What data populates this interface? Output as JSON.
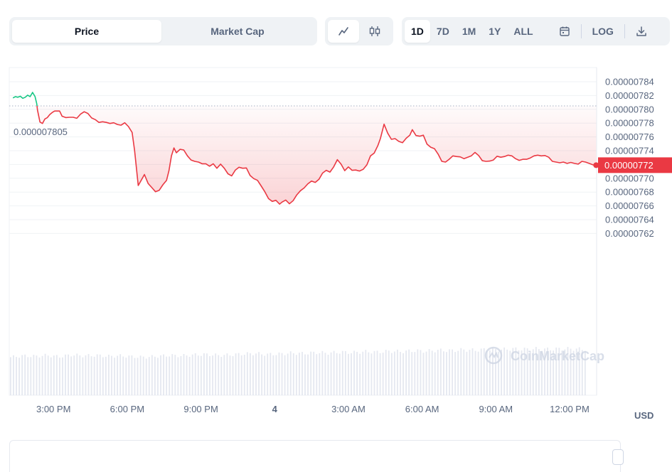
{
  "toolbar": {
    "metric_tabs": [
      {
        "label": "Price",
        "active": true
      },
      {
        "label": "Market Cap",
        "active": false
      }
    ],
    "chart_types": [
      {
        "icon": "line-chart-icon",
        "active": true
      },
      {
        "icon": "candlestick-icon",
        "active": false
      }
    ],
    "ranges": [
      {
        "label": "1D",
        "active": true
      },
      {
        "label": "7D",
        "active": false
      },
      {
        "label": "1M",
        "active": false
      },
      {
        "label": "1Y",
        "active": false
      },
      {
        "label": "ALL",
        "active": false
      }
    ],
    "calendar_icon": "calendar-icon",
    "log_label": "LOG",
    "download_icon": "download-icon"
  },
  "watermark": "CoinMarketCap",
  "currency_label": "USD",
  "colors": {
    "down": "#ea3943",
    "up": "#16c784",
    "grid": "#eff2f5",
    "axis_text": "#58667e",
    "volume": "#cfd6e4"
  },
  "chart_data": {
    "type": "line",
    "y_ticks": [
      "0.00000784",
      "0.00000782",
      "0.00000780",
      "0.00000778",
      "0.00000776",
      "0.00000774",
      "0.00000772",
      "0.00000770",
      "0.00000768",
      "0.00000766",
      "0.00000764",
      "0.00000762"
    ],
    "ylim": [
      7.61e-06,
      7.85e-06
    ],
    "x_ticks": [
      {
        "label": "3:00 PM",
        "t": 2.3
      },
      {
        "label": "6:00 PM",
        "t": 5.3
      },
      {
        "label": "9:00 PM",
        "t": 8.3
      },
      {
        "label": "4",
        "t": 11.3
      },
      {
        "label": "3:00 AM",
        "t": 14.3
      },
      {
        "label": "6:00 AM",
        "t": 17.3
      },
      {
        "label": "9:00 AM",
        "t": 20.3
      },
      {
        "label": "12:00 PM",
        "t": 23.3
      }
    ],
    "xlim": [
      0.5,
      24.4
    ],
    "reference_price": {
      "label": "0.000007805",
      "value": 7.805e-06
    },
    "current_price": {
      "label": "0.00000772",
      "value": 7.719e-06
    },
    "series": [
      {
        "points": [
          [
            0.65,
            7.8165
          ],
          [
            0.75,
            7.8185
          ],
          [
            0.85,
            7.8175
          ],
          [
            0.95,
            7.819
          ],
          [
            1.05,
            7.816
          ],
          [
            1.15,
            7.8175
          ],
          [
            1.25,
            7.8205
          ],
          [
            1.35,
            7.8185
          ],
          [
            1.45,
            7.8245
          ],
          [
            1.55,
            7.8185
          ],
          [
            1.62,
            7.808
          ],
          [
            1.65,
            7.799
          ],
          [
            1.75,
            7.7815
          ],
          [
            1.85,
            7.7795
          ],
          [
            1.95,
            7.786
          ],
          [
            2.05,
            7.788
          ],
          [
            2.15,
            7.7925
          ],
          [
            2.25,
            7.7955
          ],
          [
            2.35,
            7.7975
          ],
          [
            2.45,
            7.7975
          ],
          [
            2.55,
            7.7975
          ],
          [
            2.65,
            7.79
          ],
          [
            2.8,
            7.788
          ],
          [
            2.95,
            7.7885
          ],
          [
            3.1,
            7.7885
          ],
          [
            3.25,
            7.787
          ],
          [
            3.4,
            7.793
          ],
          [
            3.55,
            7.7965
          ],
          [
            3.7,
            7.794
          ],
          [
            3.85,
            7.7875
          ],
          [
            4.0,
            7.785
          ],
          [
            4.15,
            7.781
          ],
          [
            4.3,
            7.782
          ],
          [
            4.45,
            7.781
          ],
          [
            4.6,
            7.7795
          ],
          [
            4.75,
            7.7805
          ],
          [
            4.9,
            7.778
          ],
          [
            5.05,
            7.777
          ],
          [
            5.2,
            7.7805
          ],
          [
            5.35,
            7.775
          ],
          [
            5.5,
            7.7665
          ],
          [
            5.6,
            7.74
          ],
          [
            5.75,
            7.6895
          ],
          [
            5.9,
            7.699
          ],
          [
            6.0,
            7.7055
          ],
          [
            6.15,
            7.6925
          ],
          [
            6.3,
            7.6865
          ],
          [
            6.45,
            7.6805
          ],
          [
            6.6,
            7.6825
          ],
          [
            6.75,
            7.6905
          ],
          [
            6.9,
            7.697
          ],
          [
            7.0,
            7.711
          ],
          [
            7.1,
            7.7325
          ],
          [
            7.2,
            7.744
          ],
          [
            7.3,
            7.737
          ],
          [
            7.45,
            7.742
          ],
          [
            7.6,
            7.741
          ],
          [
            7.75,
            7.7325
          ],
          [
            7.9,
            7.7265
          ],
          [
            8.05,
            7.7245
          ],
          [
            8.2,
            7.7235
          ],
          [
            8.35,
            7.721
          ],
          [
            8.5,
            7.721
          ],
          [
            8.65,
            7.7175
          ],
          [
            8.8,
            7.721
          ],
          [
            8.95,
            7.7145
          ],
          [
            9.1,
            7.7205
          ],
          [
            9.25,
            7.7145
          ],
          [
            9.4,
            7.7065
          ],
          [
            9.55,
            7.7035
          ],
          [
            9.7,
            7.712
          ],
          [
            9.85,
            7.716
          ],
          [
            10.0,
            7.7145
          ],
          [
            10.15,
            7.715
          ],
          [
            10.3,
            7.704
          ],
          [
            10.45,
            7.6995
          ],
          [
            10.6,
            7.697
          ],
          [
            10.75,
            7.689
          ],
          [
            10.9,
            7.6805
          ],
          [
            11.05,
            7.6705
          ],
          [
            11.2,
            7.6665
          ],
          [
            11.35,
            7.668
          ],
          [
            11.5,
            7.6625
          ],
          [
            11.6,
            7.6655
          ],
          [
            11.75,
            7.6685
          ],
          [
            11.9,
            7.663
          ],
          [
            12.05,
            7.6675
          ],
          [
            12.2,
            7.676
          ],
          [
            12.35,
            7.682
          ],
          [
            12.5,
            7.686
          ],
          [
            12.65,
            7.692
          ],
          [
            12.8,
            7.696
          ],
          [
            12.95,
            7.694
          ],
          [
            13.1,
            7.6985
          ],
          [
            13.25,
            7.7075
          ],
          [
            13.4,
            7.7115
          ],
          [
            13.55,
            7.709
          ],
          [
            13.7,
            7.7165
          ],
          [
            13.85,
            7.727
          ],
          [
            14.0,
            7.7205
          ],
          [
            14.15,
            7.711
          ],
          [
            14.3,
            7.7165
          ],
          [
            14.45,
            7.7115
          ],
          [
            14.6,
            7.712
          ],
          [
            14.75,
            7.7105
          ],
          [
            14.9,
            7.713
          ],
          [
            15.05,
            7.7195
          ],
          [
            15.2,
            7.7325
          ],
          [
            15.35,
            7.7365
          ],
          [
            15.5,
            7.7475
          ],
          [
            15.6,
            7.7575
          ],
          [
            15.75,
            7.7785
          ],
          [
            15.9,
            7.7655
          ],
          [
            16.05,
            7.7565
          ],
          [
            16.2,
            7.7575
          ],
          [
            16.35,
            7.7535
          ],
          [
            16.5,
            7.7515
          ],
          [
            16.65,
            7.758
          ],
          [
            16.8,
            7.7625
          ],
          [
            16.9,
            7.7705
          ],
          [
            17.05,
            7.762
          ],
          [
            17.2,
            7.761
          ],
          [
            17.35,
            7.7625
          ],
          [
            17.5,
            7.7495
          ],
          [
            17.65,
            7.745
          ],
          [
            17.8,
            7.743
          ],
          [
            17.95,
            7.735
          ],
          [
            18.1,
            7.7245
          ],
          [
            18.25,
            7.7235
          ],
          [
            18.4,
            7.7275
          ],
          [
            18.55,
            7.7325
          ],
          [
            18.7,
            7.7315
          ],
          [
            18.85,
            7.731
          ],
          [
            19.0,
            7.7285
          ],
          [
            19.15,
            7.7305
          ],
          [
            19.3,
            7.7325
          ],
          [
            19.45,
            7.7375
          ],
          [
            19.6,
            7.733
          ],
          [
            19.75,
            7.7255
          ],
          [
            19.9,
            7.7245
          ],
          [
            20.05,
            7.725
          ],
          [
            20.2,
            7.7265
          ],
          [
            20.35,
            7.732
          ],
          [
            20.5,
            7.7305
          ],
          [
            20.65,
            7.7315
          ],
          [
            20.8,
            7.7335
          ],
          [
            20.95,
            7.7325
          ],
          [
            21.1,
            7.7285
          ],
          [
            21.25,
            7.726
          ],
          [
            21.4,
            7.7275
          ],
          [
            21.55,
            7.7275
          ],
          [
            21.7,
            7.7295
          ],
          [
            21.85,
            7.7325
          ],
          [
            22.0,
            7.7335
          ],
          [
            22.15,
            7.7325
          ],
          [
            22.3,
            7.733
          ],
          [
            22.45,
            7.7305
          ],
          [
            22.6,
            7.7245
          ],
          [
            22.75,
            7.7235
          ],
          [
            22.9,
            7.7225
          ],
          [
            23.05,
            7.7235
          ],
          [
            23.2,
            7.7215
          ],
          [
            23.35,
            7.723
          ],
          [
            23.5,
            7.7215
          ],
          [
            23.65,
            7.7205
          ],
          [
            23.8,
            7.7245
          ],
          [
            23.95,
            7.7235
          ],
          [
            24.1,
            7.7215
          ],
          [
            24.25,
            7.7195
          ],
          [
            24.38,
            7.719
          ]
        ]
      }
    ],
    "volume_relative": [
      0.82,
      0.85,
      0.84,
      0.86,
      0.83,
      0.87,
      0.85,
      0.86,
      0.84,
      0.85,
      0.83,
      0.82,
      0.84,
      0.86,
      0.85,
      0.87,
      0.88,
      0.86,
      0.87,
      0.89,
      0.9,
      0.88,
      0.89,
      0.91,
      0.9,
      0.92,
      0.91,
      0.93,
      0.92,
      0.94,
      0.93,
      0.95,
      0.94,
      0.96,
      0.95,
      0.97,
      0.96,
      0.98,
      0.97,
      0.99,
      0.98,
      1.0,
      0.99,
      1.0,
      0.99,
      1.0,
      1.0,
      0.99
    ]
  }
}
